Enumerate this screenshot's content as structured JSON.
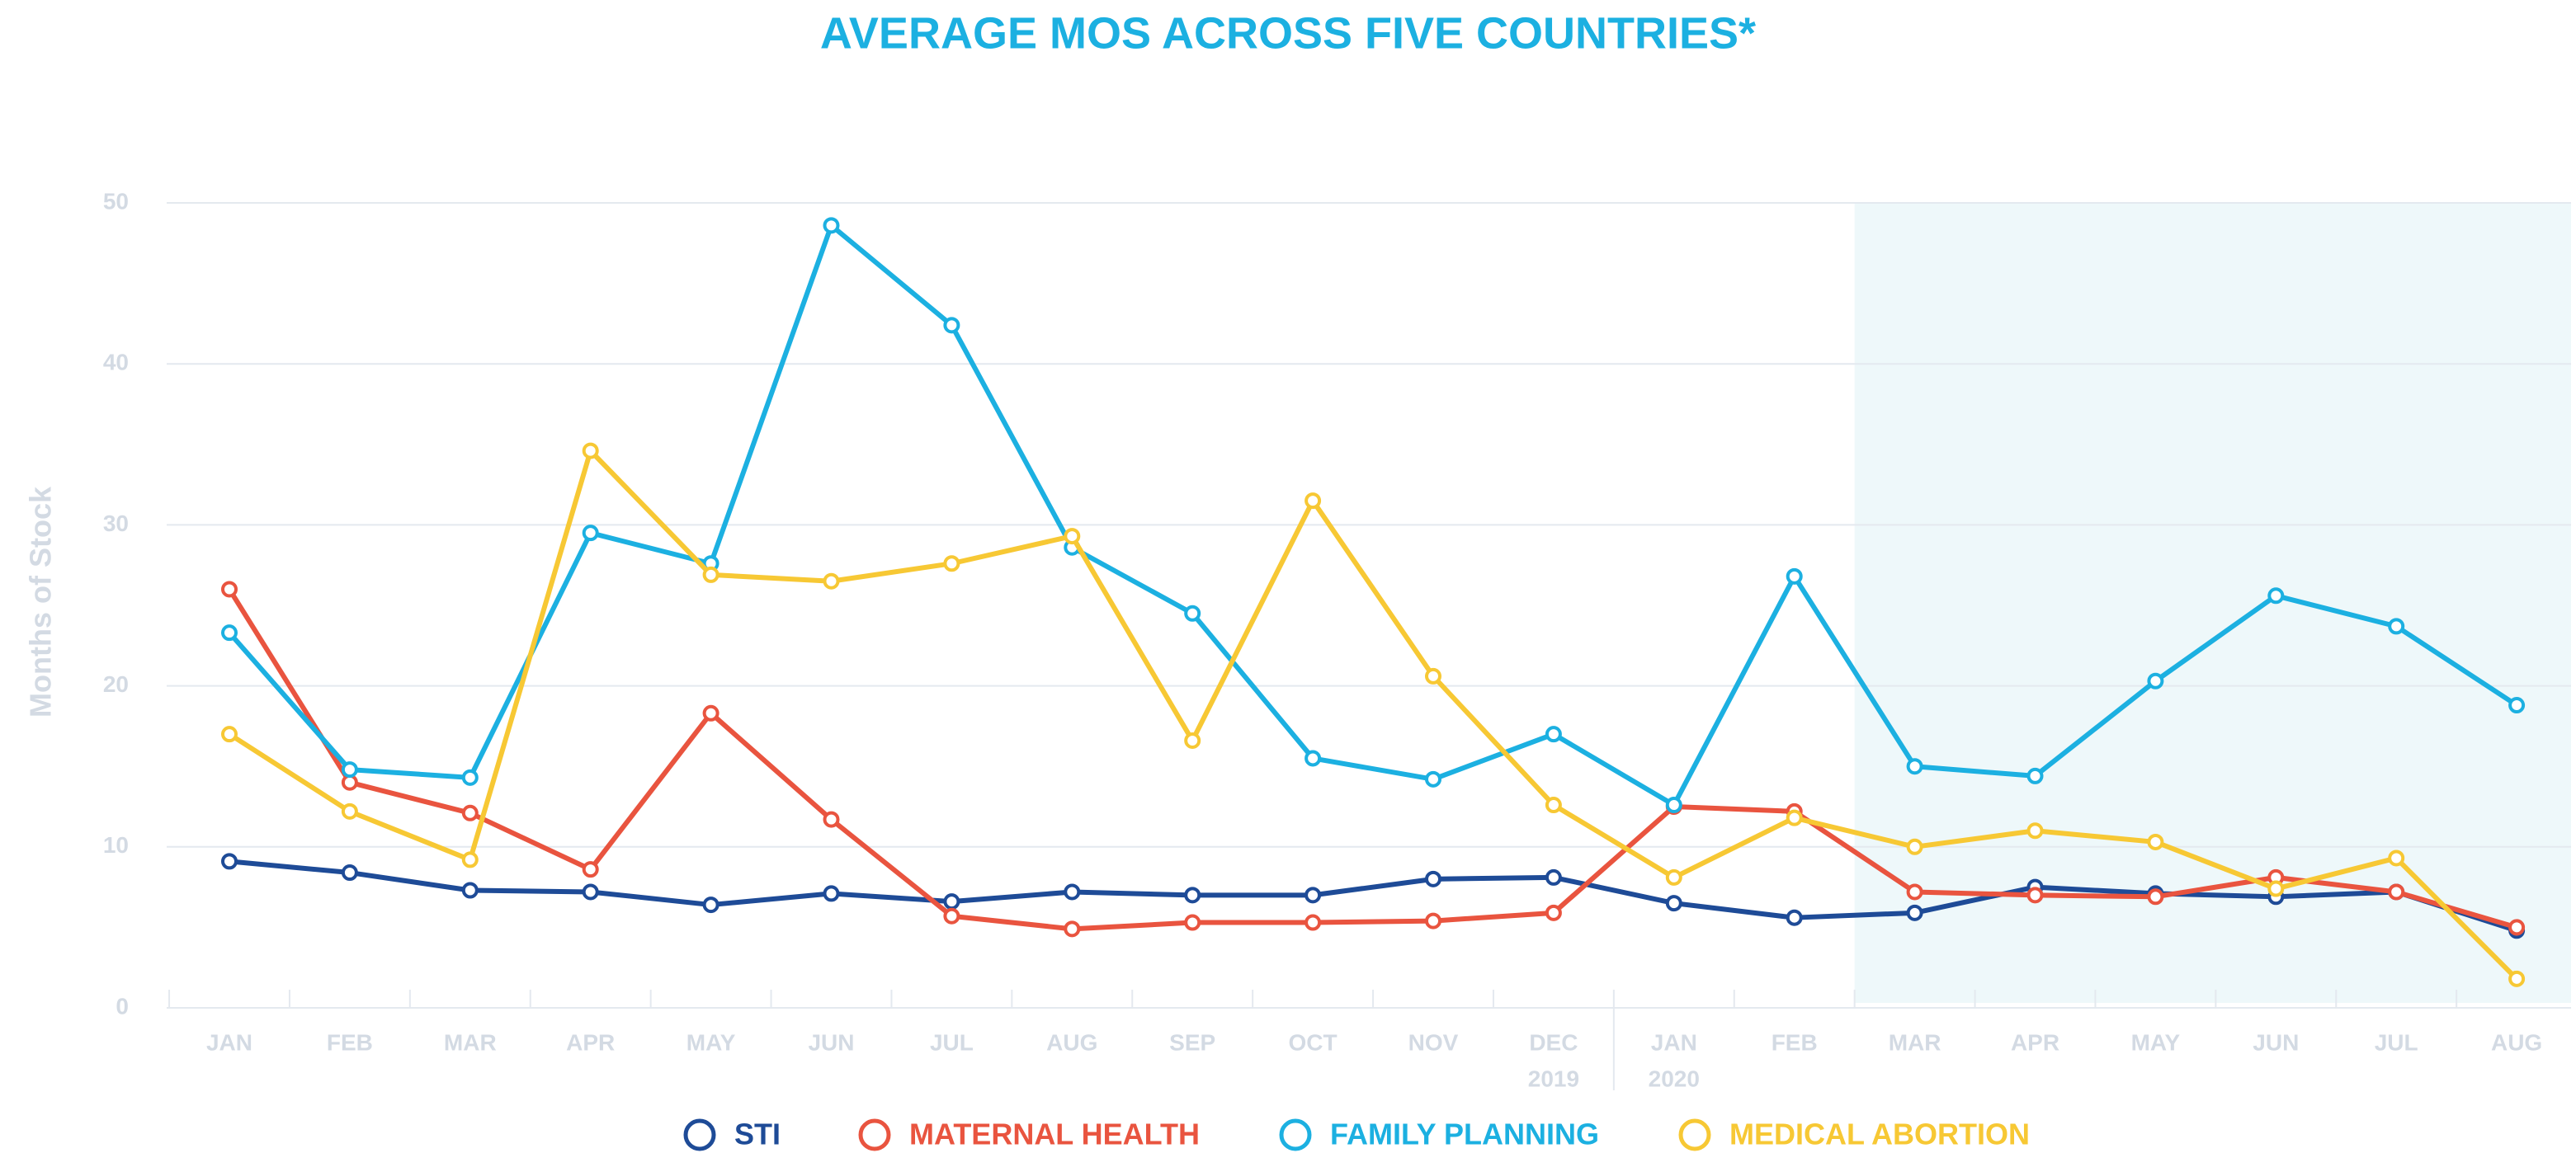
{
  "chart_data": {
    "type": "line",
    "title": "AVERAGE MOS ACROSS FIVE COUNTRIES*",
    "y_label": "Months of Stock",
    "categories": [
      "JAN",
      "FEB",
      "MAR",
      "APR",
      "MAY",
      "JUN",
      "JUL",
      "AUG",
      "SEP",
      "OCT",
      "NOV",
      "DEC",
      "JAN",
      "FEB",
      "MAR",
      "APR",
      "MAY",
      "JUN",
      "JUL",
      "AUG"
    ],
    "x_sublabels": [
      null,
      null,
      null,
      null,
      null,
      null,
      null,
      null,
      null,
      null,
      null,
      "2019",
      "2020",
      null,
      null,
      null,
      null,
      null,
      null,
      null
    ],
    "ylim": [
      0,
      50
    ],
    "yticks": [
      0,
      10,
      20,
      30,
      40,
      50
    ],
    "grid": true,
    "series": [
      {
        "name": "STI",
        "color": "#1e4b97",
        "values": [
          9.1,
          8.4,
          7.3,
          7.2,
          6.4,
          7.1,
          6.6,
          7.2,
          7.0,
          7.0,
          8.0,
          8.1,
          6.5,
          5.6,
          5.9,
          7.5,
          7.1,
          6.9,
          7.2,
          4.8
        ]
      },
      {
        "name": "MATERNAL HEALTH",
        "color": "#e9543f",
        "values": [
          26.0,
          14.0,
          12.1,
          8.6,
          18.3,
          11.7,
          5.7,
          4.9,
          5.3,
          5.3,
          5.4,
          5.9,
          12.5,
          12.2,
          7.2,
          7.0,
          6.9,
          8.1,
          7.2,
          5.0
        ]
      },
      {
        "name": "FAMILY PLANNING",
        "color": "#1cb0e1",
        "values": [
          23.3,
          14.8,
          14.3,
          29.5,
          27.6,
          48.6,
          42.4,
          28.6,
          24.5,
          15.5,
          14.2,
          17.0,
          12.6,
          26.8,
          15.0,
          14.4,
          20.3,
          25.6,
          23.7,
          18.8
        ]
      },
      {
        "name": "MEDICAL ABORTION",
        "color": "#f7c834",
        "values": [
          17.0,
          12.2,
          9.2,
          34.6,
          26.9,
          26.5,
          27.6,
          29.3,
          16.6,
          31.5,
          20.6,
          12.6,
          8.1,
          11.8,
          10.0,
          11.0,
          10.3,
          7.4,
          9.3,
          1.8
        ]
      }
    ]
  }
}
